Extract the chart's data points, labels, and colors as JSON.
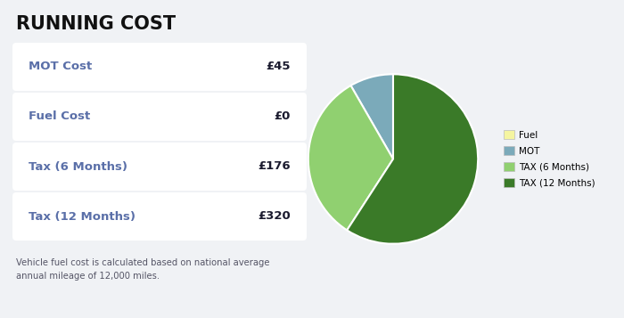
{
  "title": "RUNNING COST",
  "background_color": "#f0f2f5",
  "card_color": "#ffffff",
  "rows": [
    {
      "label": "MOT Cost",
      "value": "£45"
    },
    {
      "label": "Fuel Cost",
      "value": "£0"
    },
    {
      "label": "Tax (6 Months)",
      "value": "£176"
    },
    {
      "label": "Tax (12 Months)",
      "value": "£320"
    }
  ],
  "label_color": "#5a6fa8",
  "value_color": "#1a1a2e",
  "footnote": "Vehicle fuel cost is calculated based on national average\nannual mileage of 12,000 miles.",
  "pie_values": [
    0.001,
    45,
    176,
    320
  ],
  "pie_labels": [
    "Fuel",
    "MOT",
    "TAX (6 Months)",
    "TAX (12 Months)"
  ],
  "pie_colors": [
    "#f5f5a0",
    "#7baaba",
    "#90d070",
    "#3a7a28"
  ],
  "pie_startangle": 90,
  "legend_fontsize": 7.5,
  "title_fontsize": 15,
  "row_label_fontsize": 9.5,
  "row_value_fontsize": 9.5,
  "footnote_fontsize": 7.2
}
